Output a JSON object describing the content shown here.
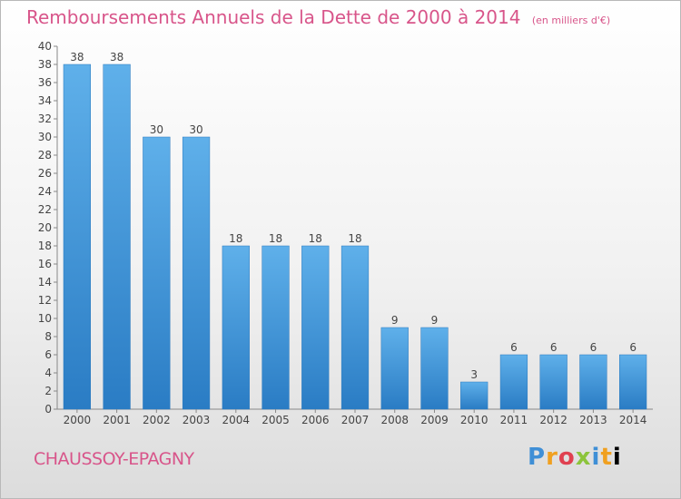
{
  "chart_data": {
    "type": "bar",
    "title": "Remboursements Annuels de la Dette de 2000 à 2014",
    "unit_note": "(en milliers d'€)",
    "categories": [
      "2000",
      "2001",
      "2002",
      "2003",
      "2004",
      "2005",
      "2006",
      "2007",
      "2008",
      "2009",
      "2010",
      "2011",
      "2012",
      "2013",
      "2014"
    ],
    "values": [
      38,
      38,
      30,
      30,
      18,
      18,
      18,
      18,
      9,
      9,
      3,
      6,
      6,
      6,
      6
    ],
    "ylim": [
      0,
      40
    ],
    "ytick_step": 2,
    "xlabel": "",
    "ylabel": "",
    "grid": false,
    "bar_color": "#4a9de0"
  },
  "footer": {
    "city": "CHAUSSOY-EPAGNY",
    "logo_letters": [
      "P",
      "r",
      "o",
      "x",
      "i",
      "t",
      "i"
    ]
  }
}
